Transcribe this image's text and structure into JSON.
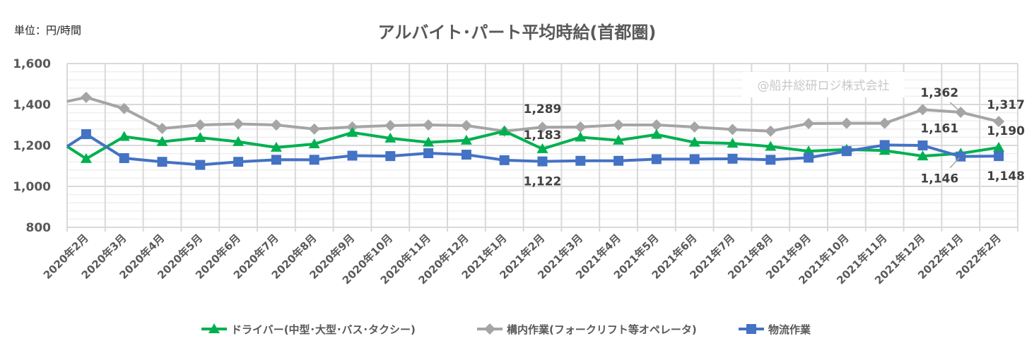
{
  "unit_label": "単位：円/時間",
  "watermark": "@船井総研ロジ株式会社",
  "chart_data": {
    "type": "line",
    "title": "アルバイト･パート平均時給(首都圏)",
    "ylim": [
      800,
      1600
    ],
    "yticks": [
      800,
      1000,
      1200,
      1400,
      1600
    ],
    "ytick_labels": [
      "800",
      "1,000",
      "1,200",
      "1,400",
      "1,600"
    ],
    "grid": true,
    "legend_position": "bottom",
    "categories": [
      "2020年2月",
      "2020年3月",
      "2020年4月",
      "2020年5月",
      "2020年6月",
      "2020年7月",
      "2020年8月",
      "2020年9月",
      "2020年10月",
      "2020年11月",
      "2020年12月",
      "2021年1月",
      "2021年2月",
      "2021年3月",
      "2021年4月",
      "2021年5月",
      "2021年6月",
      "2021年7月",
      "2021年8月",
      "2021年9月",
      "2021年10月",
      "2021年11月",
      "2021年12月",
      "2022年1月",
      "2022年2月"
    ],
    "series": [
      {
        "name": "ドライバー(中型･大型･バス･タクシー)",
        "color": "#00b050",
        "marker": "triangle",
        "lead_in": 1195,
        "values": [
          1135,
          1243,
          1218,
          1238,
          1218,
          1190,
          1207,
          1263,
          1235,
          1215,
          1225,
          1270,
          1183,
          1240,
          1225,
          1253,
          1215,
          1210,
          1195,
          1172,
          1180,
          1175,
          1148,
          1161,
          1190
        ],
        "labels": [
          {
            "index": 12,
            "text": "1,183",
            "pos": "above"
          },
          {
            "index": 23,
            "text": "1,161",
            "pos": "above",
            "color": "#000000"
          },
          {
            "index": 24,
            "text": "1,190",
            "pos": "above"
          }
        ]
      },
      {
        "name": "構内作業(フォークリフト等オペレータ)",
        "color": "#a5a5a5",
        "marker": "diamond",
        "lead_in": 1415,
        "values": [
          1435,
          1380,
          1283,
          1300,
          1305,
          1300,
          1280,
          1290,
          1297,
          1300,
          1297,
          1270,
          1289,
          1290,
          1300,
          1300,
          1290,
          1278,
          1270,
          1307,
          1308,
          1308,
          1375,
          1362,
          1317
        ],
        "labels": [
          {
            "index": 12,
            "text": "1,289",
            "pos": "above"
          },
          {
            "index": 23,
            "text": "1,362",
            "pos": "above-left"
          },
          {
            "index": 24,
            "text": "1,317",
            "pos": "above"
          }
        ]
      },
      {
        "name": "物流作業",
        "color": "#4472c4",
        "marker": "square",
        "lead_in": 1195,
        "values": [
          1255,
          1138,
          1120,
          1105,
          1120,
          1130,
          1130,
          1150,
          1148,
          1162,
          1155,
          1128,
          1122,
          1125,
          1125,
          1133,
          1133,
          1135,
          1130,
          1140,
          1172,
          1202,
          1200,
          1146,
          1148
        ],
        "labels": [
          {
            "index": 12,
            "text": "1,122",
            "pos": "below"
          },
          {
            "index": 23,
            "text": "1,146",
            "pos": "below-left"
          },
          {
            "index": 24,
            "text": "1,148",
            "pos": "below"
          }
        ]
      }
    ]
  }
}
